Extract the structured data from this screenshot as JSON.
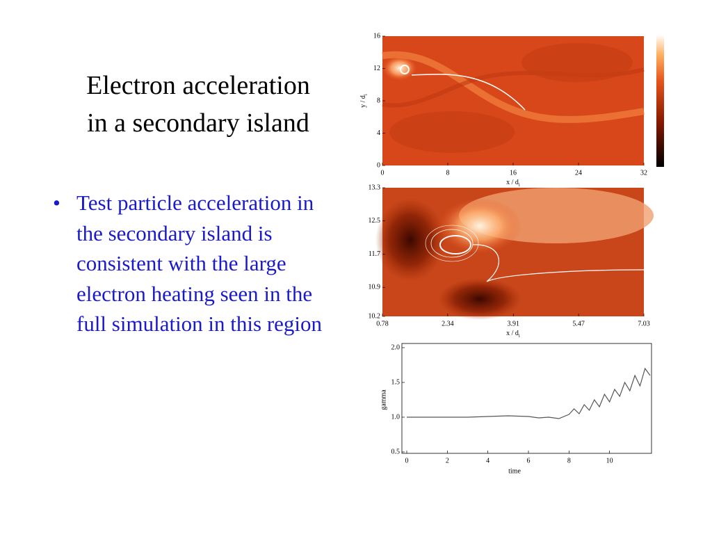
{
  "title_lines": [
    "Electron acceleration",
    "in a secondary island"
  ],
  "bullets": [
    "Test particle acceleration in the secondary island is consistent with the large electron heating seen in the full simulation in this region"
  ],
  "panels": [
    {
      "type": "heatmap",
      "xlabel": {
        "text": "x / d",
        "sub": "i"
      },
      "ylabel": {
        "text": "y / d",
        "sub": "i"
      },
      "xlim": [
        0,
        32
      ],
      "xticks": [
        0,
        8,
        16,
        24,
        32
      ],
      "ylim": [
        0,
        16
      ],
      "yticks": [
        0,
        4,
        8,
        12,
        16
      ]
    },
    {
      "type": "heatmap",
      "xlabel": {
        "text": "x / d",
        "sub": "i"
      },
      "xlim": [
        0.78,
        7.03
      ],
      "xticks": [
        0.78,
        2.34,
        3.91,
        5.47,
        7.03
      ],
      "ylim": [
        10.2,
        13.3
      ],
      "yticks": [
        10.2,
        10.9,
        11.7,
        12.5,
        13.3
      ]
    },
    {
      "type": "line",
      "xlabel": "time",
      "ylabel": "gamma",
      "color": "#555555",
      "xlim": [
        0,
        12
      ],
      "xticks": [
        0,
        2,
        4,
        6,
        8,
        10
      ],
      "ylim": [
        0.5,
        2.0
      ],
      "yticks": [
        {
          "value": 0.5,
          "label": "0.5"
        },
        {
          "value": 1,
          "label": "1.0"
        },
        {
          "value": 1.5,
          "label": "1.5"
        },
        {
          "value": 2,
          "label": "2.0"
        }
      ],
      "x": [
        0,
        1,
        2,
        3,
        4,
        5,
        6,
        6.5,
        7,
        7.5,
        8,
        8.25,
        8.5,
        8.75,
        9,
        9.25,
        9.5,
        9.75,
        10,
        10.25,
        10.5,
        10.75,
        11,
        11.25,
        11.5,
        11.75,
        12
      ],
      "values": [
        1,
        1,
        1,
        1,
        1.01,
        1.02,
        1.01,
        0.99,
        1.0,
        0.98,
        1.04,
        1.12,
        1.05,
        1.18,
        1.1,
        1.25,
        1.15,
        1.33,
        1.22,
        1.4,
        1.3,
        1.5,
        1.38,
        1.6,
        1.45,
        1.7,
        1.6
      ]
    }
  ]
}
